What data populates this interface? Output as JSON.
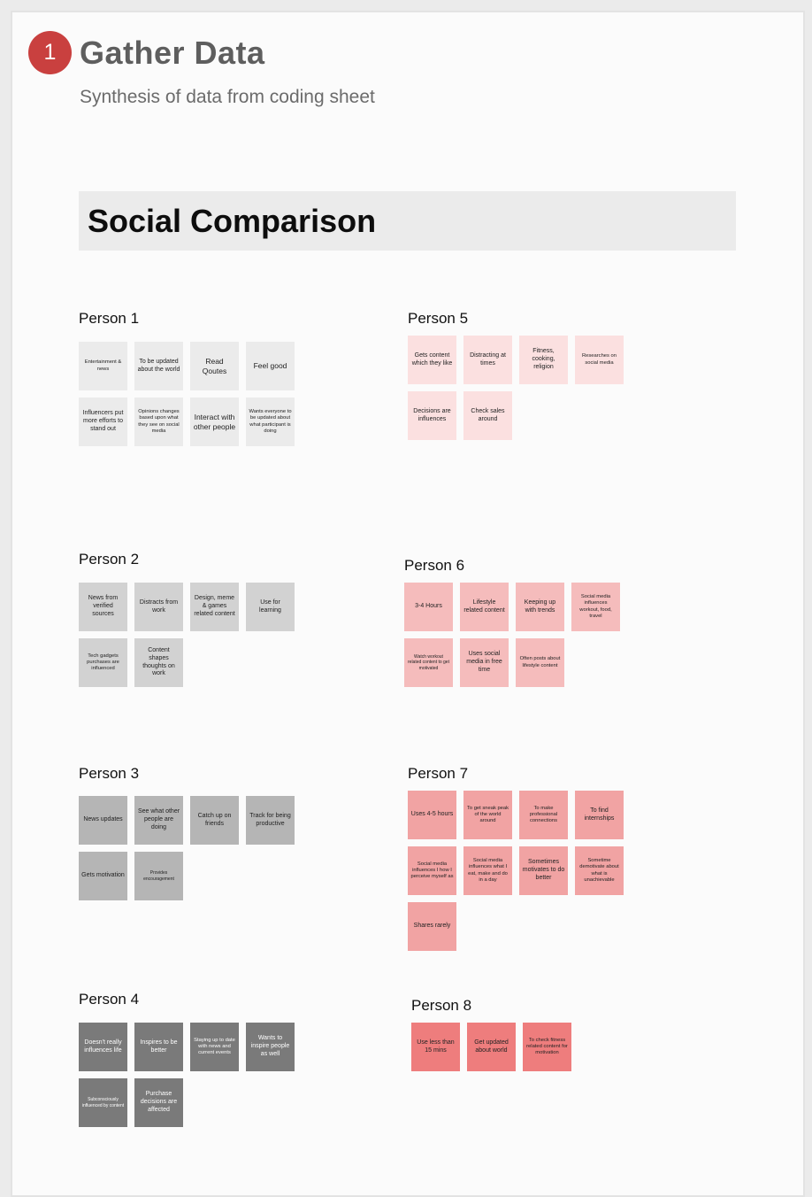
{
  "header": {
    "step_number": "1",
    "title": "Gather Data",
    "subtitle": "Synthesis of data from coding sheet",
    "section_title": "Social Comparison"
  },
  "colors": {
    "step_badge": "#c9403f",
    "section_banner": "#ebebeb"
  },
  "groups": [
    {
      "title": "Person 1",
      "color": "#ebebeb",
      "text_color": "#222222",
      "notes": [
        {
          "text": "Entertainment & news",
          "size": "xs"
        },
        {
          "text": "To be updated about the world",
          "size": "sm"
        },
        {
          "text": "Read Qoutes",
          "size": "md"
        },
        {
          "text": "Feel good",
          "size": "md"
        },
        {
          "text": "Influencers put more efforts to stand out",
          "size": "sm"
        },
        {
          "text": "Opinions changes based upon what they see on social media",
          "size": "xs"
        },
        {
          "text": "Interact with other people",
          "size": "md"
        },
        {
          "text": "Wants everyone to be updated about what participant is doing",
          "size": "xs"
        }
      ]
    },
    {
      "title": "Person 2",
      "color": "#d2d2d2",
      "text_color": "#222222",
      "notes": [
        {
          "text": "News from verified sources",
          "size": "sm"
        },
        {
          "text": "Distracts from work",
          "size": "sm"
        },
        {
          "text": "Design, meme & games related content",
          "size": "sm"
        },
        {
          "text": "Use for learning",
          "size": "sm"
        },
        {
          "text": "Tech gadgets purchases are influenced",
          "size": "xs"
        },
        {
          "text": "Content shapes thoughts on work",
          "size": "sm"
        }
      ]
    },
    {
      "title": "Person 3",
      "color": "#b5b5b5",
      "text_color": "#222222",
      "notes": [
        {
          "text": "News updates",
          "size": "sm"
        },
        {
          "text": "See what other people are doing",
          "size": "sm"
        },
        {
          "text": "Catch up on friends",
          "size": "sm"
        },
        {
          "text": "Track for being productive",
          "size": "sm"
        },
        {
          "text": "Gets motivation",
          "size": "sm"
        },
        {
          "text": "Provides encouragement",
          "size": "xxs"
        }
      ]
    },
    {
      "title": "Person 4",
      "color": "#7a7a7a",
      "text_color": "#ffffff",
      "notes": [
        {
          "text": "Doesn't really influences life",
          "size": "sm"
        },
        {
          "text": "Inspires to be better",
          "size": "sm"
        },
        {
          "text": "Staying up to date with news and current events",
          "size": "xs"
        },
        {
          "text": "Wants to inspire people as well",
          "size": "sm"
        },
        {
          "text": "Subconsciously influenced by content",
          "size": "xxs"
        },
        {
          "text": "Purchase decisions are affected",
          "size": "sm"
        }
      ]
    },
    {
      "title": "Person 5",
      "color": "#fbe0e0",
      "text_color": "#222222",
      "notes": [
        {
          "text": "Gets content which they like",
          "size": "sm"
        },
        {
          "text": "Distracting at times",
          "size": "sm"
        },
        {
          "text": "Fitness, cooking, religion",
          "size": "sm"
        },
        {
          "text": "Researches on social media",
          "size": "xs"
        },
        {
          "text": "Decisions are influences",
          "size": "sm"
        },
        {
          "text": "Check sales around",
          "size": "sm"
        }
      ]
    },
    {
      "title": "Person 6",
      "color": "#f5bcbc",
      "text_color": "#222222",
      "notes": [
        {
          "text": "3-4 Hours",
          "size": "sm"
        },
        {
          "text": "Lifestyle related content",
          "size": "sm"
        },
        {
          "text": "Keeping up with trends",
          "size": "sm"
        },
        {
          "text": "Social media influences workout, food, travel",
          "size": "xs"
        },
        {
          "text": "Watch workout related content to get motivated",
          "size": "xxs"
        },
        {
          "text": "Uses social media in free time",
          "size": "sm"
        },
        {
          "text": "Often posts about lifestyle content",
          "size": "xs"
        }
      ]
    },
    {
      "title": "Person 7",
      "color": "#f1a3a3",
      "text_color": "#222222",
      "notes": [
        {
          "text": "Uses 4-5 hours",
          "size": "sm"
        },
        {
          "text": "To get sneak peak of the world around",
          "size": "xs"
        },
        {
          "text": "To make professional connections",
          "size": "xs"
        },
        {
          "text": "To find internships",
          "size": "sm"
        },
        {
          "text": "Social media influences I how I perceive myself as",
          "size": "xs"
        },
        {
          "text": "Social media influences what I eat, make and do in a day",
          "size": "xs"
        },
        {
          "text": "Sometimes motivates to do better",
          "size": "sm"
        },
        {
          "text": "Sometime demotivate about what is unachievable",
          "size": "xs"
        },
        {
          "text": "Shares rarely",
          "size": "sm"
        }
      ]
    },
    {
      "title": "Person 8",
      "color": "#ee7d7d",
      "text_color": "#222222",
      "notes": [
        {
          "text": "Use less than 15 mins",
          "size": "sm"
        },
        {
          "text": "Get updated about world",
          "size": "sm"
        },
        {
          "text": "To check fitness related content for motivation",
          "size": "xs"
        }
      ]
    }
  ]
}
